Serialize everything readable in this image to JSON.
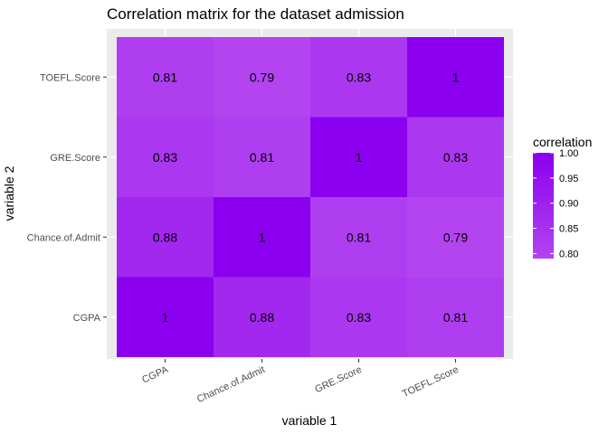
{
  "chart_data": {
    "type": "heatmap",
    "title": "Correlation matrix for the dataset admission",
    "xlabel": "variable 1",
    "ylabel": "variable 2",
    "x_categories": [
      "CGPA",
      "Chance.of.Admit",
      "GRE.Score",
      "TOEFL.Score"
    ],
    "y_categories": [
      "CGPA",
      "Chance.of.Admit",
      "GRE.Score",
      "TOEFL.Score"
    ],
    "values": [
      [
        1,
        0.88,
        0.83,
        0.81
      ],
      [
        0.88,
        1,
        0.81,
        0.79
      ],
      [
        0.83,
        0.81,
        1,
        0.83
      ],
      [
        0.81,
        0.79,
        0.83,
        1
      ]
    ],
    "legend": {
      "title": "correlation",
      "position": "right",
      "ticks": [
        "1.00",
        "0.95",
        "0.90",
        "0.85",
        "0.80"
      ],
      "tick_values": [
        1.0,
        0.95,
        0.9,
        0.85,
        0.8
      ],
      "range": [
        0.79,
        1.0
      ]
    },
    "colors": {
      "low": "#b344f0",
      "high": "#8b00ee",
      "panel_background": "#ebebeb",
      "grid": "#ffffff"
    },
    "grid": true
  }
}
